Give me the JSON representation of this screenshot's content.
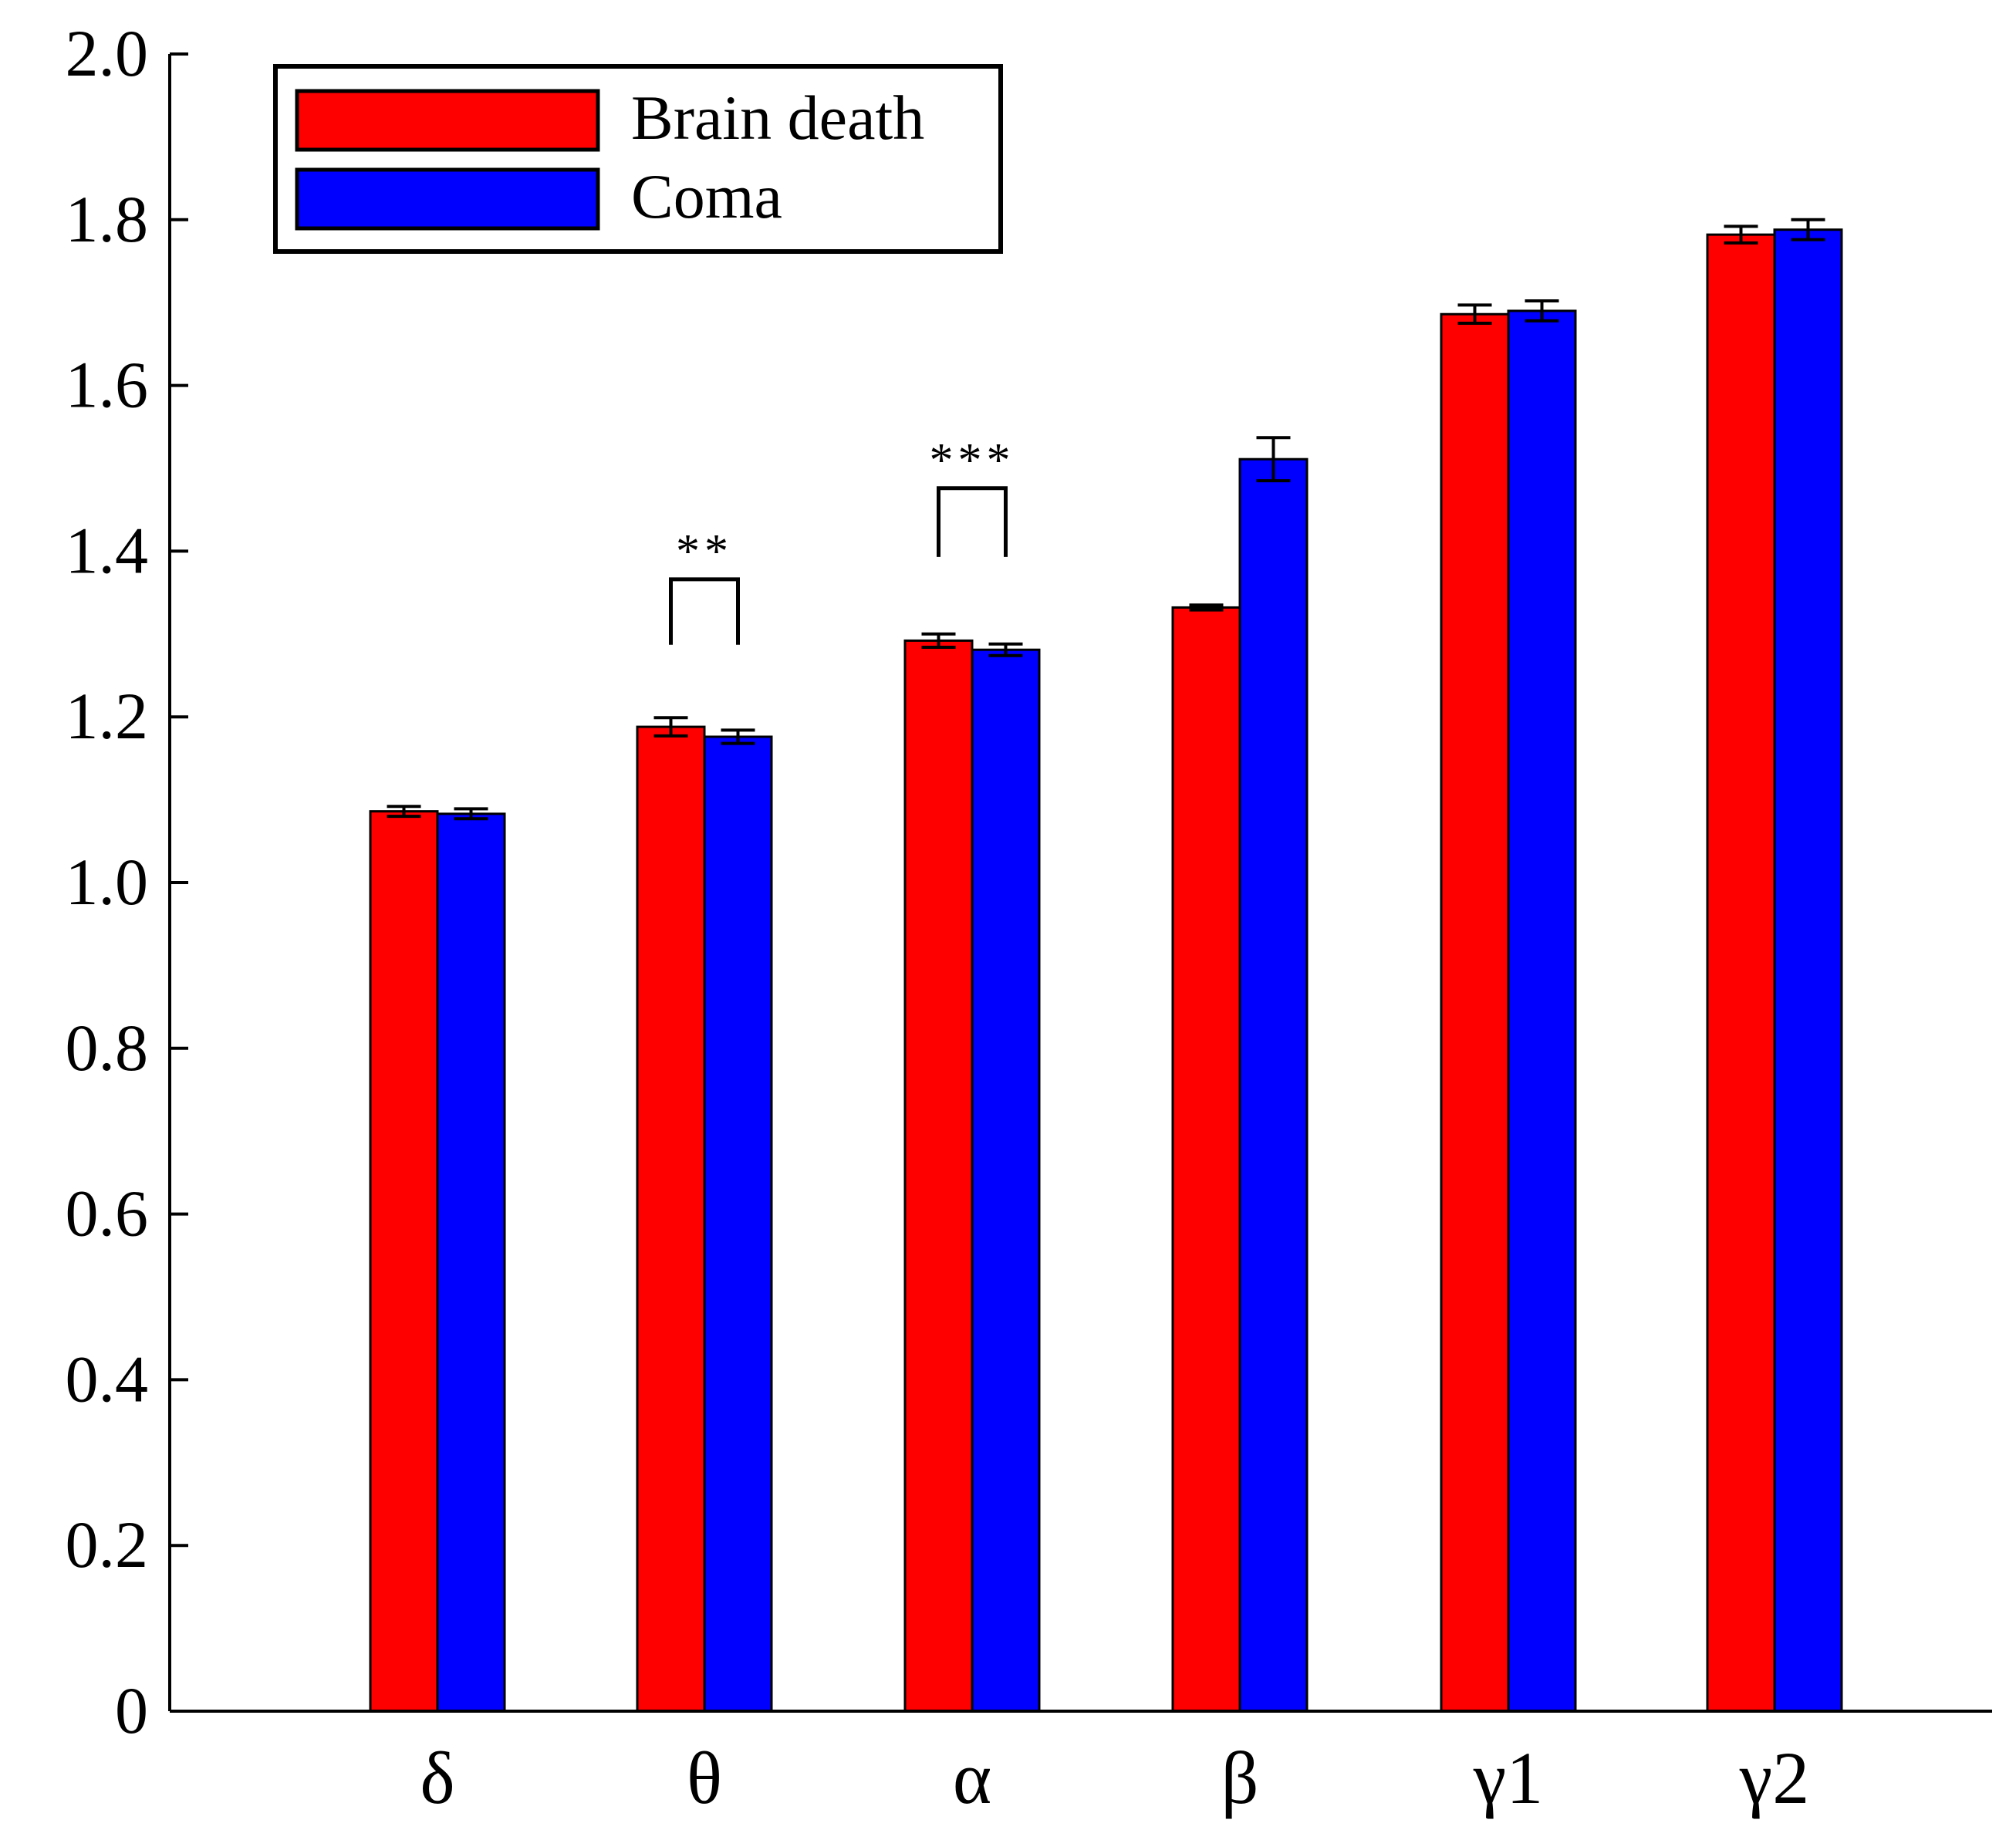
{
  "chart_data": {
    "type": "bar",
    "title": "",
    "xlabel": "",
    "ylabel": "",
    "categories": [
      "δ",
      "θ",
      "α",
      "β",
      "γ1",
      "γ2"
    ],
    "ylim": [
      0,
      2.0
    ],
    "yticks": [
      0,
      0.2,
      0.4,
      0.6,
      0.8,
      1.0,
      1.2,
      1.4,
      1.6,
      1.8,
      2.0
    ],
    "ytick_labels": [
      "0",
      "0.2",
      "0.4",
      "0.6",
      "0.8",
      "1.0",
      "1.2",
      "1.4",
      "1.6",
      "1.8",
      "2.0"
    ],
    "grid": false,
    "legend_position": "top-left",
    "series": [
      {
        "name": "Brain death",
        "color": "#ff0000",
        "values": [
          1.086,
          1.188,
          1.292,
          1.332,
          1.686,
          1.782
        ],
        "errors": [
          0.006,
          0.011,
          0.008,
          0.003,
          0.011,
          0.01
        ]
      },
      {
        "name": "Coma",
        "color": "#0000ff",
        "values": [
          1.083,
          1.176,
          1.281,
          1.511,
          1.69,
          1.788
        ],
        "errors": [
          0.006,
          0.008,
          0.007,
          0.026,
          0.012,
          0.012
        ]
      }
    ],
    "significance": [
      {
        "category_index": 1,
        "label": "**",
        "bracket_top": 1.366,
        "bracket_bottom": 1.287
      },
      {
        "category_index": 2,
        "label": "***",
        "bracket_top": 1.476,
        "bracket_bottom": 1.393
      }
    ]
  }
}
